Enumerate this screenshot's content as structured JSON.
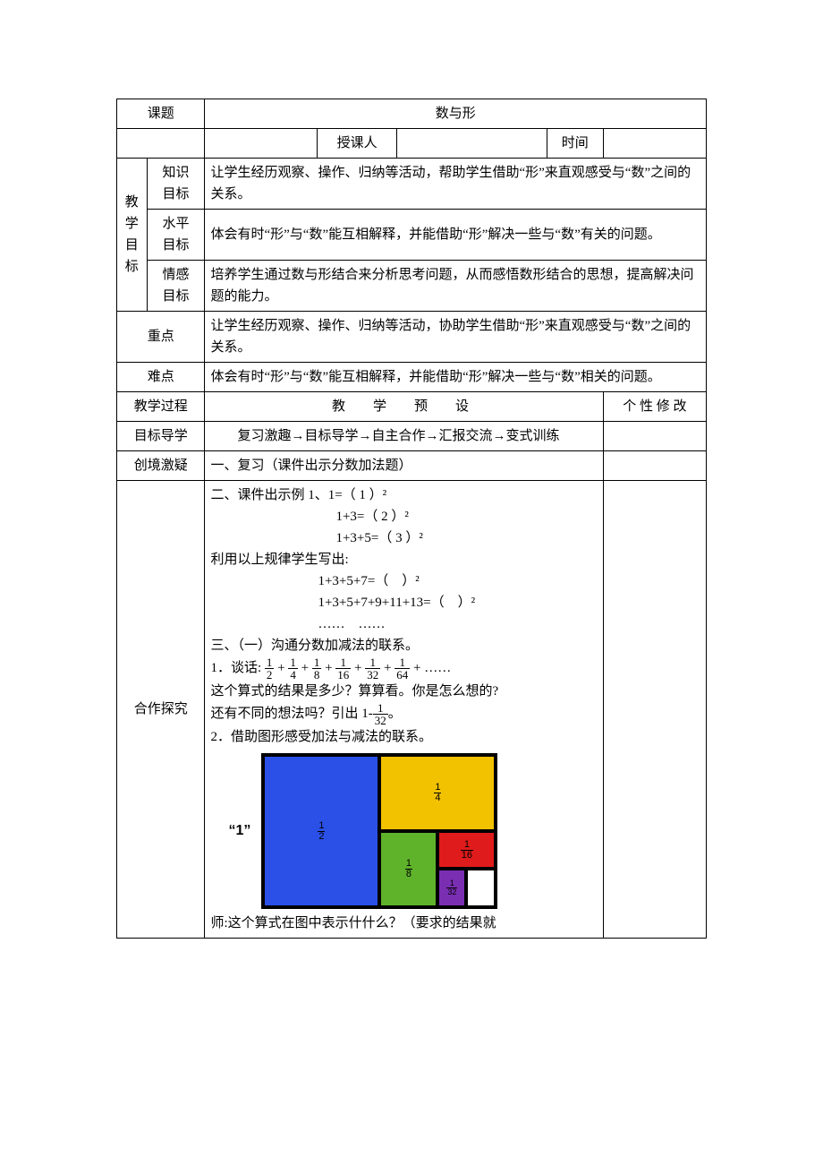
{
  "header": {
    "topic_label": "课题",
    "topic_value": "数与形",
    "lecturer_label": "授课人",
    "time_label": "时间"
  },
  "goals": {
    "group_label": "教学目标",
    "knowledge_label": "知识目标",
    "knowledge_text": "让学生经历观察、操作、归纳等活动，帮助学生借助“形”来直观感受与“数”之间的关系。",
    "skill_label": "水平目标",
    "skill_text": "体会有时“形”与“数”能互相解释，并能借助“形”解决一些与“数”有关的问题。",
    "affective_label": "情感目标",
    "affective_text": "培养学生通过数与形结合来分析思考问题，从而感悟数形结合的思想，提高解决问题的能力。"
  },
  "keypoint": {
    "label": "重点",
    "text": "让学生经历观察、操作、归纳等活动，协助学生借助“形”来直观感受与“数”之间的关系。"
  },
  "difficulty": {
    "label": "难点",
    "text": "体会有时“形”与“数”能互相解释，并能借助“形”解决一些与“数”相关的问题。"
  },
  "process": {
    "left_label": "教学过程",
    "mid_label": "教　学　预　设",
    "right_label": "个 性 修 改"
  },
  "row_guide": {
    "label": "目标导学",
    "text": "　　复习激趣→目标导学→自主合作→汇报交流→变式训练"
  },
  "row_review": {
    "label": "创境激疑",
    "text": "一、复习（课件出示分数加法题）"
  },
  "row_explore": {
    "label": "合作探究",
    "intro_line": "二、课件出示例 1、1=（ 1 ）²",
    "eq2": "1+3=（ 2 ）²",
    "eq3": "1+3+5=（ 3 ）²",
    "use_rule": "利用以上规律学生写出:",
    "eq4": "1+3+5+7=（　）²",
    "eq5": "1+3+5+7+9+11+13=（　）²",
    "dots": "……　……",
    "section3": "三、（一）沟通分数加减法的联系。",
    "talk_prefix": "1．谈话:",
    "fraction_sum": {
      "terms": [
        {
          "n": "1",
          "d": "2"
        },
        {
          "n": "1",
          "d": "4"
        },
        {
          "n": "1",
          "d": "8"
        },
        {
          "n": "1",
          "d": "16"
        },
        {
          "n": "1",
          "d": "32"
        },
        {
          "n": "1",
          "d": "64"
        }
      ],
      "tail": "+ ……"
    },
    "q1": "这个算式的结果是多少？算算看。你是怎么想的?",
    "q2a": "还有不同的想法吗？引出 1-",
    "q2_frac": {
      "n": "1",
      "d": "32"
    },
    "q2b": "。",
    "p2": "2．借助图形感受加法与减法的联系。",
    "one_label": "“1”",
    "teacher_line": "师:这个算式在图中表示什什么？（要求的结果就"
  },
  "diagram": {
    "colors": {
      "half": "#2b50e8",
      "quarter": "#f2c200",
      "eighth": "#5fb32b",
      "sixteenth": "#e01b1b",
      "thirtysecond": "#7a2fb3",
      "blank": "#ffffff",
      "border": "#000000"
    },
    "labels": {
      "half": {
        "n": "1",
        "d": "2"
      },
      "quarter": {
        "n": "1",
        "d": "4"
      },
      "eighth": {
        "n": "1",
        "d": "8"
      },
      "sixteenth": {
        "n": "1",
        "d": "16"
      },
      "thirtysecond": {
        "n": "1",
        "d": "32"
      }
    }
  }
}
